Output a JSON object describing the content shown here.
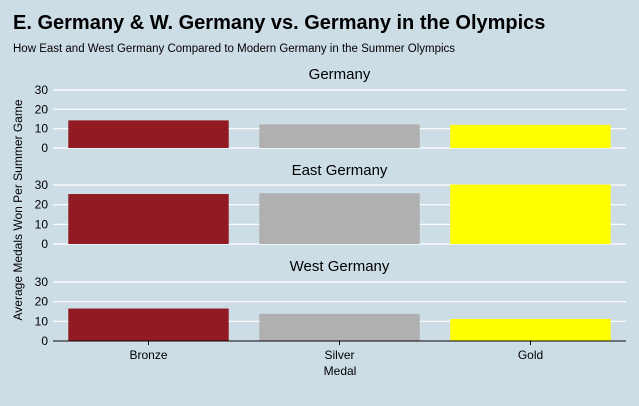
{
  "chart_data": {
    "type": "bar",
    "title": "E. Germany & W. Germany vs. Germany in the Olympics",
    "subtitle": "How East and West Germany Compared to Modern Germany in the Summer Olympics",
    "xlabel": "Medal",
    "ylabel": "Average Medals Won Per Summer Game",
    "categories": [
      "Bronze",
      "Silver",
      "Gold"
    ],
    "category_colors": [
      "#921b23",
      "#b0b0b0",
      "#ffff00"
    ],
    "ylim": [
      0,
      30
    ],
    "yticks": [
      0,
      10,
      20,
      30
    ],
    "grid": true,
    "legend": "none",
    "facets": [
      {
        "name": "Germany",
        "values": [
          14.3,
          12.2,
          12.0
        ]
      },
      {
        "name": "East Germany",
        "values": [
          25.4,
          25.8,
          30.2
        ]
      },
      {
        "name": "West Germany",
        "values": [
          16.5,
          13.8,
          11.2
        ]
      }
    ]
  }
}
